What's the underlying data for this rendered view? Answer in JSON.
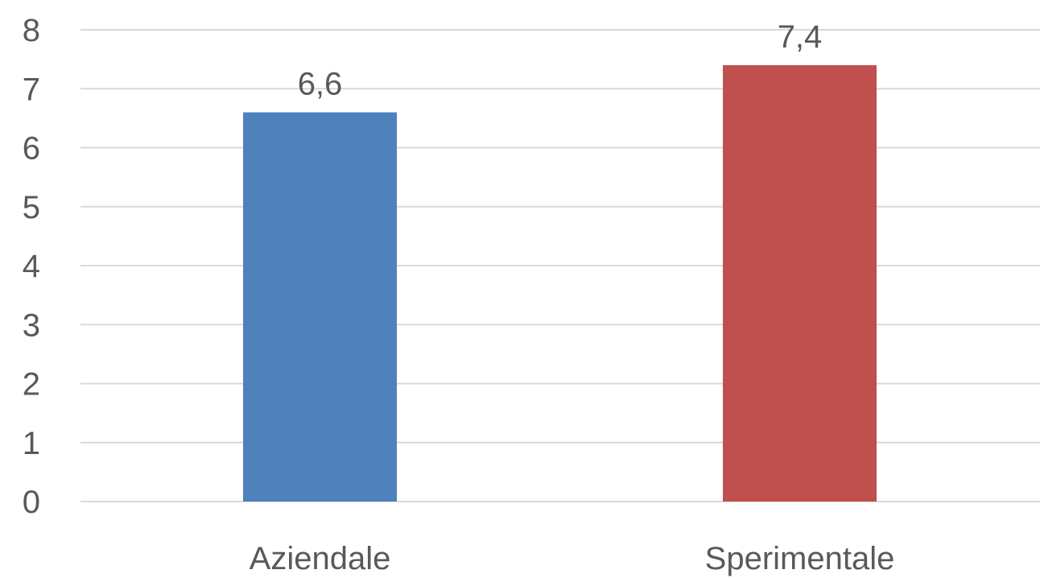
{
  "chart_data": {
    "type": "bar",
    "categories": [
      "Aziendale",
      "Sperimentale"
    ],
    "values": [
      6.6,
      7.4
    ],
    "data_labels": [
      "6,6",
      "7,4"
    ],
    "colors": [
      "#4f81bd",
      "#c0504d"
    ],
    "ylim": [
      0,
      8
    ],
    "yticks": [
      0,
      1,
      2,
      3,
      4,
      5,
      6,
      7,
      8
    ],
    "title": "",
    "xlabel": "",
    "ylabel": "",
    "grid": true,
    "legend": "none"
  }
}
